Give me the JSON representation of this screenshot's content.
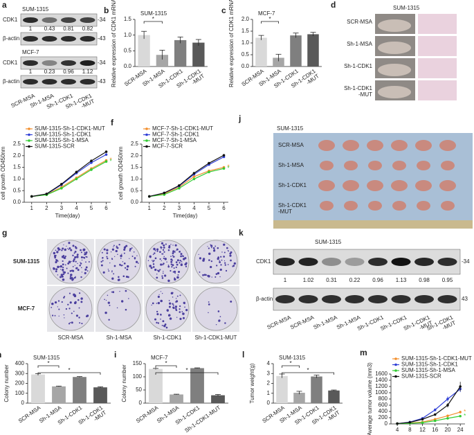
{
  "chart_data": [
    {
      "panel": "b",
      "type": "bar",
      "title": "SUM-1315",
      "ylabel": "Relative expression of CDK1 mRNA",
      "categories": [
        "SCR-MSA",
        "Sh-1-MSA",
        "Sh-1-CDK1",
        "Sh-1-CDK1 -MUT"
      ],
      "values": [
        1.0,
        0.37,
        0.84,
        0.76
      ],
      "errors": [
        0.12,
        0.15,
        0.1,
        0.1
      ],
      "colors": [
        "#d9d9d9",
        "#a6a6a6",
        "#7f7f7f",
        "#595959"
      ],
      "ylim": [
        0,
        1.5
      ],
      "yticks": [
        {
          "value": 0,
          "label": "0.0"
        },
        0.5,
        {
          "value": 1,
          "label": "1.0"
        },
        1.5
      ],
      "significance": [
        {
          "label": "*",
          "between": [
            0,
            1
          ]
        }
      ]
    },
    {
      "panel": "c",
      "type": "bar",
      "title": "MCF-7",
      "ylabel": "Relative expression of CDK1 mRNA",
      "categories": [
        "SCR-MSA",
        "Sh-1-MSA",
        "Sh-1-CDK1",
        "Sh-1-CDK1 -MUT"
      ],
      "values": [
        1.22,
        0.37,
        1.32,
        1.37
      ],
      "errors": [
        0.1,
        0.15,
        0.1,
        0.08
      ],
      "colors": [
        "#d9d9d9",
        "#a6a6a6",
        "#7f7f7f",
        "#595959"
      ],
      "ylim": [
        0,
        2
      ],
      "yticks": [
        {
          "value": 0,
          "label": "0.0"
        },
        0.5,
        {
          "value": 1,
          "label": "1.0"
        },
        1.5,
        {
          "value": 2,
          "label": "2.0"
        }
      ],
      "significance": [
        {
          "label": "*",
          "between": [
            0,
            1
          ]
        }
      ]
    },
    {
      "panel": "e",
      "type": "line",
      "xlabel": "Time(day)",
      "ylabel": "cell growth OD450nm",
      "x": [
        1,
        2,
        3,
        4,
        5,
        6
      ],
      "xlim": [
        0.5,
        6.3
      ],
      "xticks": [
        1,
        2,
        3,
        4,
        5,
        6
      ],
      "ylim": [
        0,
        2.5
      ],
      "yticks": [
        {
          "value": 0,
          "label": "0.0"
        },
        0.5,
        {
          "value": 1,
          "label": "1.0"
        },
        1.5,
        {
          "value": 2,
          "label": "2.0"
        },
        2.5
      ],
      "series": [
        {
          "name": "SUM-1315-Sh-1-CDK1-MUT",
          "color": "#f28e2b",
          "values": [
            0.25,
            0.33,
            0.65,
            1.05,
            1.45,
            1.8
          ],
          "note": "*"
        },
        {
          "name": "SUM-1315-Sh-1-CDK1",
          "color": "#2f3fd6",
          "values": [
            0.25,
            0.35,
            0.75,
            1.25,
            1.7,
            2.05
          ]
        },
        {
          "name": "SUM-1315-Sh-1-MSA",
          "color": "#33cc33",
          "values": [
            0.25,
            0.32,
            0.6,
            1.0,
            1.4,
            1.75
          ],
          "note": "*"
        },
        {
          "name": "SUM-1315-SCR",
          "color": "#111111",
          "values": [
            0.25,
            0.36,
            0.78,
            1.3,
            1.78,
            2.17
          ]
        }
      ]
    },
    {
      "panel": "f",
      "type": "line",
      "xlabel": "Time(day)",
      "ylabel": "cell growth OD450nm",
      "x": [
        1,
        2,
        3,
        4,
        5,
        6
      ],
      "xlim": [
        0.5,
        6.3
      ],
      "xticks": [
        1,
        2,
        3,
        4,
        5,
        6
      ],
      "ylim": [
        0,
        2.5
      ],
      "yticks": [
        {
          "value": 0,
          "label": "0.0"
        },
        0.5,
        {
          "value": 1,
          "label": "1.0"
        },
        1.5,
        {
          "value": 2,
          "label": "2.0"
        },
        2.5
      ],
      "series": [
        {
          "name": "MCF-7-Sh-1-CDK1-MUT",
          "color": "#f28e2b",
          "values": [
            0.25,
            0.37,
            0.65,
            1.1,
            1.35,
            1.5
          ],
          "note": "*"
        },
        {
          "name": "MCF-7-Sh-1-CDK1",
          "color": "#2f3fd6",
          "values": [
            0.25,
            0.4,
            0.7,
            1.2,
            1.62,
            1.95
          ]
        },
        {
          "name": "MCF-7-Sh-1-MSA",
          "color": "#33cc33",
          "values": [
            0.25,
            0.33,
            0.6,
            1.0,
            1.3,
            1.45
          ],
          "note": "*"
        },
        {
          "name": "MCF-7-SCR",
          "color": "#111111",
          "values": [
            0.25,
            0.4,
            0.72,
            1.25,
            1.68,
            2.02
          ]
        }
      ]
    },
    {
      "panel": "h",
      "type": "bar",
      "title": "SUM-1315",
      "ylabel": "Colony number",
      "categories": [
        "SCR-MSA",
        "Sh-1-MSA",
        "Sh-1-CDK1",
        "Sh-1-CDK1 -MUT"
      ],
      "values": [
        290,
        170,
        265,
        160
      ],
      "errors": [
        8,
        3,
        4,
        5
      ],
      "colors": [
        "#d9d9d9",
        "#a6a6a6",
        "#7f7f7f",
        "#595959"
      ],
      "ylim": [
        0,
        400
      ],
      "yticks": [
        0,
        100,
        200,
        300,
        400
      ],
      "significance": [
        {
          "label": "*",
          "between": [
            0,
            1
          ]
        },
        {
          "label": "*",
          "between": [
            0,
            3
          ]
        }
      ]
    },
    {
      "panel": "i",
      "type": "bar",
      "title": "MCF-7",
      "ylabel": "Colony number",
      "categories": [
        "SCR-MSA",
        "Sh-1-MSA",
        "Sh-1-CDK1",
        "Sh-1-CDK1-MUT"
      ],
      "values": [
        130,
        33,
        133,
        30
      ],
      "errors": [
        2,
        1,
        1,
        3
      ],
      "colors": [
        "#d9d9d9",
        "#a6a6a6",
        "#7f7f7f",
        "#595959"
      ],
      "ylim": [
        0,
        150
      ],
      "yticks": [
        0,
        50,
        100,
        150
      ],
      "significance": [
        {
          "label": "*",
          "between": [
            0,
            1
          ]
        },
        {
          "label": "*",
          "between": [
            0,
            3
          ]
        }
      ]
    },
    {
      "panel": "l",
      "type": "bar",
      "title": "SUM-1315",
      "ylabel": "Tumor weight(g)",
      "categories": [
        "SCR-MSA",
        "Sh-1-MSA",
        "Sh-1-CDK1",
        "Sh-1-CDK1 -MUT"
      ],
      "values": [
        2.75,
        1.05,
        2.7,
        1.28
      ],
      "errors": [
        0.2,
        0.15,
        0.15,
        0.05
      ],
      "colors": [
        "#d9d9d9",
        "#a6a6a6",
        "#7f7f7f",
        "#595959"
      ],
      "ylim": [
        0,
        4
      ],
      "yticks": [
        0,
        1,
        2,
        3,
        4
      ],
      "significance": [
        {
          "label": "*",
          "between": [
            0,
            1
          ]
        },
        {
          "label": "*",
          "between": [
            0,
            3
          ]
        }
      ]
    },
    {
      "panel": "m",
      "type": "line",
      "xlabel": "Time(day)",
      "ylabel": "Average tumor volume (mm3)",
      "x": [
        4,
        8,
        12,
        16,
        20,
        24
      ],
      "xlim": [
        2,
        25.5
      ],
      "xticks": [
        4,
        8,
        12,
        16,
        20,
        24
      ],
      "ylim": [
        0,
        1600
      ],
      "yticks": [
        0,
        200,
        400,
        600,
        800,
        1000,
        1200,
        1400,
        1600
      ],
      "series": [
        {
          "name": "SUM-1315-Sh-1-CDK1-MUT",
          "color": "#f28e2b",
          "values": [
            10,
            30,
            60,
            150,
            260,
            380
          ],
          "errors": [
            5,
            10,
            15,
            20,
            30,
            40
          ],
          "note": "*"
        },
        {
          "name": "SUM-1315-Sh-1-CDK1",
          "color": "#2f3fd6",
          "values": [
            10,
            60,
            180,
            450,
            800,
            1120
          ],
          "errors": [
            5,
            15,
            30,
            50,
            80,
            100
          ]
        },
        {
          "name": "SUM-1315-Sh-1-MSA",
          "color": "#33cc33",
          "values": [
            10,
            20,
            40,
            100,
            180,
            250
          ],
          "errors": [
            5,
            8,
            10,
            15,
            20,
            30
          ],
          "note": "*"
        },
        {
          "name": "SUM-1315-SCR",
          "color": "#111111",
          "values": [
            10,
            50,
            150,
            300,
            600,
            1200
          ],
          "errors": [
            5,
            12,
            25,
            40,
            70,
            150
          ]
        }
      ]
    }
  ],
  "panel_a": {
    "panel": "a",
    "groups": [
      {
        "cell": "SUM-1315",
        "bands": [
          "CDK1",
          "β-actin"
        ],
        "ratios": [
          1,
          0.43,
          0.81,
          0.82
        ],
        "markers": [
          "-34",
          "-43"
        ]
      },
      {
        "cell": "MCF-7",
        "bands": [
          "CDK1",
          "β-actin"
        ],
        "ratios": [
          1,
          0.23,
          0.96,
          1.12
        ],
        "markers": [
          "-34",
          "-43"
        ]
      }
    ],
    "lanes": [
      "SCR-MSA",
      "Sh-1-MSA",
      "Sh-1-CDK1",
      "Sh-1-CDK1 -MUT"
    ]
  },
  "panel_d": {
    "panel": "d",
    "title": "SUM-1315",
    "rows": [
      "SCR-MSA",
      "Sh-1-MSA",
      "Sh-1-CDK1",
      "Sh-1-CDK1 -MUT"
    ]
  },
  "panel_g": {
    "panel": "g",
    "rows": [
      "SUM-1315",
      "MCF-7"
    ],
    "columns": [
      "SCR-MSA",
      "Sh-1-MSA",
      "Sh-1-CDK1",
      "Sh-1-CDK1-MUT"
    ]
  },
  "panel_j": {
    "panel": "j",
    "title": "SUM-1315",
    "rows": [
      "SCR-MSA",
      "Sh-1-MSA",
      "Sh-1-CDK1",
      "Sh-1-CDK1 -MUT"
    ]
  },
  "panel_k": {
    "panel": "k",
    "title": "SUM-1315",
    "bands": [
      "CDK1",
      "β-actin"
    ],
    "ratios": [
      1,
      1.02,
      0.31,
      0.22,
      0.96,
      1.13,
      0.98,
      0.95
    ],
    "markers": [
      "-34",
      "43"
    ],
    "lanes": [
      "SCR-MSA",
      "SCR-MSA",
      "Sh-1-MSA",
      "Sh-1-MSA",
      "Sh-1-CDK1",
      "Sh-1-CDK1",
      "Sh-1-CDK1 -MUT",
      "Sh-1-CDK1 -MUT"
    ]
  }
}
